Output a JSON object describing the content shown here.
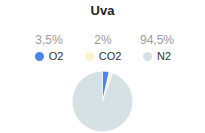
{
  "chart_data": {
    "type": "pie",
    "title": "Uva",
    "categories": [
      "O2",
      "CO2",
      "N2"
    ],
    "values": [
      3.5,
      2,
      94.5
    ],
    "value_labels": [
      "3,5%",
      "2%",
      "94,5%"
    ],
    "colors": [
      "#4a86e8",
      "#fff2cc",
      "#d6e1e4"
    ],
    "legend": "top"
  }
}
